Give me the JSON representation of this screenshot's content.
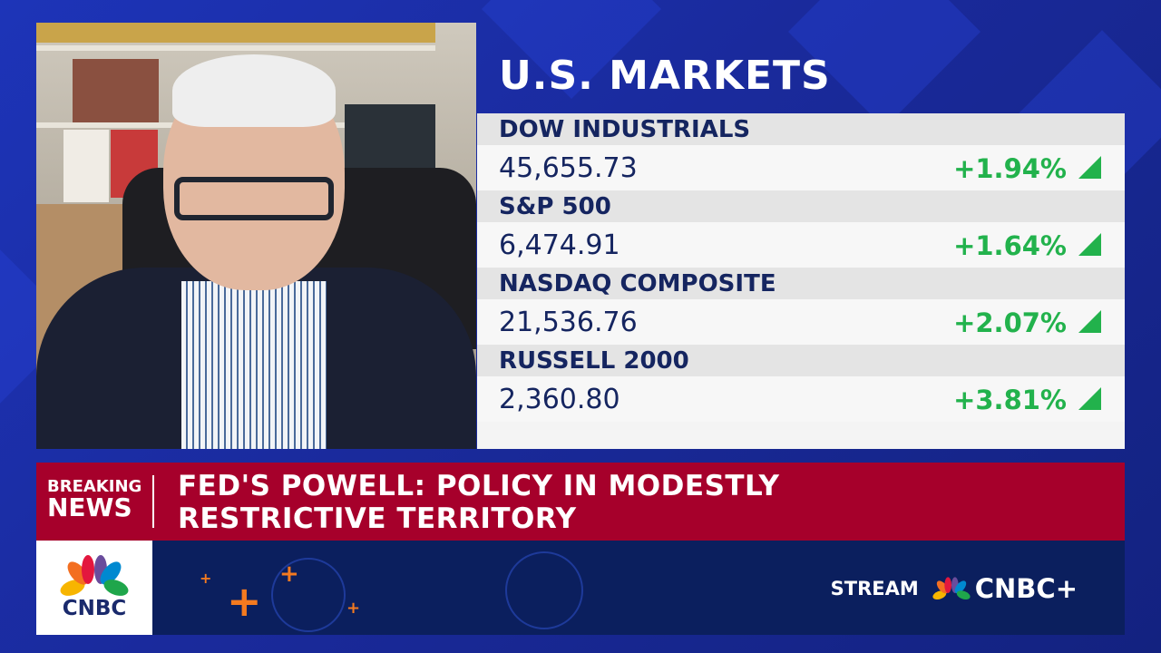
{
  "panel_title": "U.S. MARKETS",
  "markets": [
    {
      "name": "DOW INDUSTRIALS",
      "value": "45,655.73",
      "change": "+1.94%",
      "direction": "up"
    },
    {
      "name": "S&P 500",
      "value": "6,474.91",
      "change": "+1.64%",
      "direction": "up"
    },
    {
      "name": "NASDAQ COMPOSITE",
      "value": "21,536.76",
      "change": "+2.07%",
      "direction": "up"
    },
    {
      "name": "RUSSELL 2000",
      "value": "2,360.80",
      "change": "+3.81%",
      "direction": "up"
    }
  ],
  "breaking": {
    "label_top": "BREAKING",
    "label_bottom": "NEWS",
    "headline": "FED'S POWELL: POLICY IN MODESTLY RESTRICTIVE TERRITORY"
  },
  "network_logo": "CNBC",
  "promo": {
    "stream": "STREAM",
    "brand": "CNBC+"
  },
  "colors": {
    "positive": "#22b24c",
    "breaking": "#a6002b",
    "navy": "#0b1f5e"
  }
}
